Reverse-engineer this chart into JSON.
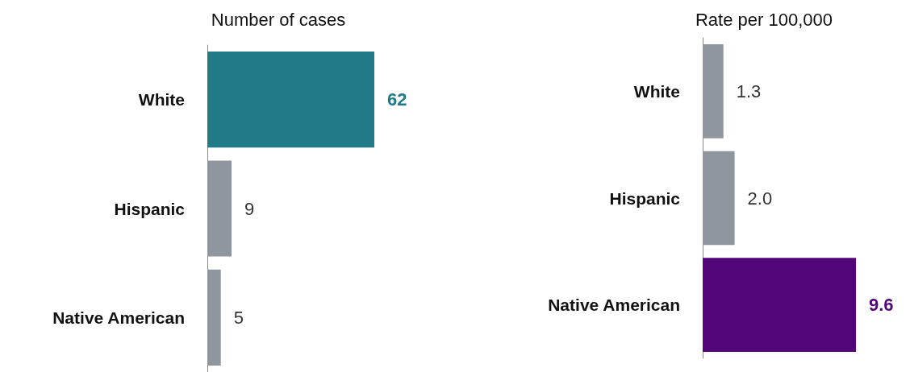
{
  "chart_data": [
    {
      "type": "bar",
      "orientation": "horizontal",
      "title": "Number of cases",
      "categories": [
        "White",
        "Hispanic",
        "Native American"
      ],
      "values": [
        62,
        9,
        5
      ],
      "colors": [
        "#217a87",
        "#8f969d",
        "#8f969d"
      ],
      "data_labels": true
    },
    {
      "type": "bar",
      "orientation": "horizontal",
      "title": "Rate per 100,000",
      "categories": [
        "White",
        "Hispanic",
        "Native American"
      ],
      "values": [
        1.3,
        2.0,
        9.6
      ],
      "colors": [
        "#8f969d",
        "#8f969d",
        "#53057a"
      ],
      "value_labels": [
        "1.3",
        "2.0",
        "9.6"
      ]
    }
  ]
}
